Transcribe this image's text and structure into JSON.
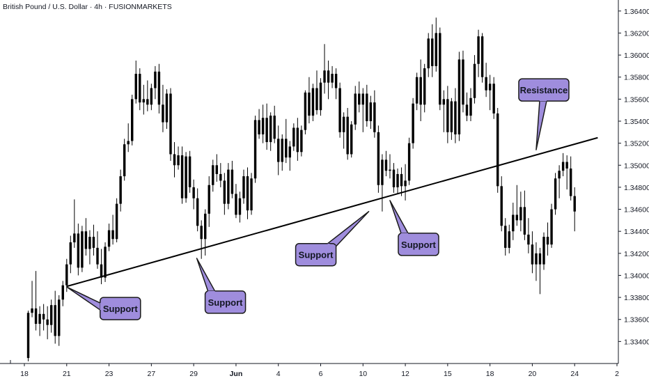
{
  "header": {
    "title": "British Pound / U.S. Dollar · 4h · FUSIONMARKETS"
  },
  "colors": {
    "candle": "#000000",
    "callout_fill": "#9f8ddd",
    "callout_stroke": "#1a1a1a",
    "background": "#ffffff",
    "axis": "#131722"
  },
  "chart_data": {
    "type": "candlestick",
    "title": "British Pound / U.S. Dollar · 4h · FUSIONMARKETS",
    "ylim": [
      1.332,
      1.365
    ],
    "y_ticks": [
      "1.33400",
      "1.33600",
      "1.33800",
      "1.34000",
      "1.34200",
      "1.34400",
      "1.34600",
      "1.34800",
      "1.35000",
      "1.35200",
      "1.35400",
      "1.35600",
      "1.35800",
      "1.36000",
      "1.36200",
      "1.36400"
    ],
    "x_ticks": [
      {
        "label": "18",
        "bar": -1
      },
      {
        "label": "21",
        "bar": 10
      },
      {
        "label": "23",
        "bar": 21
      },
      {
        "label": "27",
        "bar": 32
      },
      {
        "label": "29",
        "bar": 43
      },
      {
        "label": "Jun",
        "bar": 54
      },
      {
        "label": "4",
        "bar": 65
      },
      {
        "label": "6",
        "bar": 76
      },
      {
        "label": "10",
        "bar": 87
      },
      {
        "label": "12",
        "bar": 98
      },
      {
        "label": "15",
        "bar": 109
      },
      {
        "label": "18",
        "bar": 120
      },
      {
        "label": "20",
        "bar": 131
      },
      {
        "label": "24",
        "bar": 142
      },
      {
        "label": "2",
        "bar": 153
      }
    ],
    "bar_count_span": [
      -1,
      153
    ],
    "candles": [
      [
        1.3325,
        1.3368,
        1.3322,
        1.3366
      ],
      [
        1.3366,
        1.3395,
        1.3362,
        1.337
      ],
      [
        1.337,
        1.3404,
        1.335,
        1.3356
      ],
      [
        1.3356,
        1.3372,
        1.3345,
        1.3365
      ],
      [
        1.3365,
        1.3374,
        1.335,
        1.336
      ],
      [
        1.336,
        1.3372,
        1.3342,
        1.3355
      ],
      [
        1.3355,
        1.3378,
        1.3348,
        1.3373
      ],
      [
        1.3373,
        1.3386,
        1.3338,
        1.3345
      ],
      [
        1.3345,
        1.3382,
        1.3336,
        1.3378
      ],
      [
        1.3378,
        1.3395,
        1.3372,
        1.3391
      ],
      [
        1.3391,
        1.3415,
        1.3385,
        1.341
      ],
      [
        1.341,
        1.3436,
        1.3402,
        1.343
      ],
      [
        1.343,
        1.3469,
        1.3425,
        1.3438
      ],
      [
        1.3438,
        1.3447,
        1.34,
        1.3407
      ],
      [
        1.3407,
        1.3445,
        1.3403,
        1.344
      ],
      [
        1.344,
        1.3452,
        1.3418,
        1.3424
      ],
      [
        1.3424,
        1.3441,
        1.341,
        1.3435
      ],
      [
        1.3435,
        1.3446,
        1.3418,
        1.3425
      ],
      [
        1.3425,
        1.344,
        1.3406,
        1.341
      ],
      [
        1.341,
        1.3424,
        1.3392,
        1.3398
      ],
      [
        1.3398,
        1.343,
        1.3394,
        1.3426
      ],
      [
        1.3426,
        1.3447,
        1.3422,
        1.3441
      ],
      [
        1.3441,
        1.3455,
        1.3428,
        1.3433
      ],
      [
        1.3433,
        1.347,
        1.343,
        1.3465
      ],
      [
        1.3465,
        1.3496,
        1.3458,
        1.349
      ],
      [
        1.349,
        1.3524,
        1.3486,
        1.3519
      ],
      [
        1.3519,
        1.3538,
        1.3512,
        1.3522
      ],
      [
        1.3522,
        1.3564,
        1.3518,
        1.356
      ],
      [
        1.356,
        1.3595,
        1.3556,
        1.3583
      ],
      [
        1.3583,
        1.3588,
        1.355,
        1.3557
      ],
      [
        1.3557,
        1.3573,
        1.3546,
        1.356
      ],
      [
        1.356,
        1.3577,
        1.3549,
        1.3555
      ],
      [
        1.3555,
        1.3574,
        1.355,
        1.357
      ],
      [
        1.357,
        1.359,
        1.356,
        1.3585
      ],
      [
        1.3585,
        1.3592,
        1.3547,
        1.3555
      ],
      [
        1.3555,
        1.3573,
        1.353,
        1.3539
      ],
      [
        1.3539,
        1.3569,
        1.3533,
        1.3565
      ],
      [
        1.3565,
        1.357,
        1.3504,
        1.351
      ],
      [
        1.351,
        1.3521,
        1.3489,
        1.35
      ],
      [
        1.35,
        1.3517,
        1.3496,
        1.3509
      ],
      [
        1.3509,
        1.3517,
        1.3465,
        1.347
      ],
      [
        1.347,
        1.3512,
        1.3466,
        1.3508
      ],
      [
        1.3508,
        1.3513,
        1.3475,
        1.348
      ],
      [
        1.348,
        1.3487,
        1.346,
        1.347
      ],
      [
        1.347,
        1.3479,
        1.344,
        1.3445
      ],
      [
        1.3445,
        1.345,
        1.3415,
        1.3433
      ],
      [
        1.3433,
        1.346,
        1.3418,
        1.3456
      ],
      [
        1.3456,
        1.349,
        1.3444,
        1.3482
      ],
      [
        1.3482,
        1.3505,
        1.3476,
        1.35
      ],
      [
        1.35,
        1.351,
        1.3485,
        1.3492
      ],
      [
        1.3492,
        1.3502,
        1.348,
        1.3486
      ],
      [
        1.3486,
        1.3493,
        1.3455,
        1.3465
      ],
      [
        1.3465,
        1.3502,
        1.346,
        1.3496
      ],
      [
        1.3496,
        1.3504,
        1.347,
        1.3474
      ],
      [
        1.3474,
        1.3483,
        1.3452,
        1.3455
      ],
      [
        1.3455,
        1.3476,
        1.3448,
        1.347
      ],
      [
        1.347,
        1.3496,
        1.3465,
        1.349
      ],
      [
        1.349,
        1.3498,
        1.3451,
        1.3459
      ],
      [
        1.3459,
        1.3493,
        1.3455,
        1.3488
      ],
      [
        1.3488,
        1.3545,
        1.3484,
        1.3541
      ],
      [
        1.3541,
        1.3551,
        1.3524,
        1.3528
      ],
      [
        1.3528,
        1.3555,
        1.352,
        1.3543
      ],
      [
        1.3543,
        1.3556,
        1.3514,
        1.3521
      ],
      [
        1.3521,
        1.3548,
        1.3513,
        1.3545
      ],
      [
        1.3545,
        1.3554,
        1.352,
        1.3524
      ],
      [
        1.3524,
        1.3536,
        1.3491,
        1.3503
      ],
      [
        1.3503,
        1.3528,
        1.3495,
        1.3524
      ],
      [
        1.3524,
        1.3542,
        1.3502,
        1.3507
      ],
      [
        1.3507,
        1.3522,
        1.3495,
        1.3517
      ],
      [
        1.3517,
        1.3538,
        1.3513,
        1.3534
      ],
      [
        1.3534,
        1.3543,
        1.3504,
        1.3512
      ],
      [
        1.3512,
        1.3536,
        1.3508,
        1.3532
      ],
      [
        1.3532,
        1.3568,
        1.3528,
        1.3566
      ],
      [
        1.3566,
        1.358,
        1.3538,
        1.3545
      ],
      [
        1.3545,
        1.3574,
        1.354,
        1.357
      ],
      [
        1.357,
        1.3586,
        1.3546,
        1.355
      ],
      [
        1.355,
        1.3579,
        1.3545,
        1.3575
      ],
      [
        1.3575,
        1.361,
        1.3565,
        1.3586
      ],
      [
        1.3586,
        1.3595,
        1.356,
        1.3575
      ],
      [
        1.3575,
        1.359,
        1.357,
        1.3583
      ],
      [
        1.3583,
        1.3588,
        1.356,
        1.357
      ],
      [
        1.357,
        1.3575,
        1.3525,
        1.353
      ],
      [
        1.353,
        1.3548,
        1.3515,
        1.3544
      ],
      [
        1.3544,
        1.3552,
        1.3505,
        1.351
      ],
      [
        1.351,
        1.354,
        1.3507,
        1.3537
      ],
      [
        1.3537,
        1.3572,
        1.3532,
        1.3565
      ],
      [
        1.3565,
        1.3576,
        1.3548,
        1.3555
      ],
      [
        1.3555,
        1.357,
        1.353,
        1.3565
      ],
      [
        1.3565,
        1.3573,
        1.3535,
        1.354
      ],
      [
        1.354,
        1.3563,
        1.3533,
        1.3557
      ],
      [
        1.3557,
        1.3568,
        1.3525,
        1.353
      ],
      [
        1.353,
        1.3536,
        1.3475,
        1.3482
      ],
      [
        1.3482,
        1.351,
        1.3458,
        1.3505
      ],
      [
        1.3505,
        1.3513,
        1.349,
        1.3495
      ],
      [
        1.3495,
        1.351,
        1.3488,
        1.3496
      ],
      [
        1.3496,
        1.3502,
        1.3475,
        1.348
      ],
      [
        1.348,
        1.3497,
        1.3474,
        1.3492
      ],
      [
        1.3492,
        1.3498,
        1.3472,
        1.3481
      ],
      [
        1.3481,
        1.3501,
        1.3468,
        1.3486
      ],
      [
        1.3486,
        1.3525,
        1.3482,
        1.352
      ],
      [
        1.352,
        1.3561,
        1.3515,
        1.3556
      ],
      [
        1.3556,
        1.3584,
        1.355,
        1.358
      ],
      [
        1.358,
        1.3596,
        1.354,
        1.3555
      ],
      [
        1.3555,
        1.3592,
        1.3548,
        1.3588
      ],
      [
        1.3588,
        1.362,
        1.358,
        1.3615
      ],
      [
        1.3615,
        1.3628,
        1.358,
        1.359
      ],
      [
        1.359,
        1.3634,
        1.3585,
        1.362
      ],
      [
        1.362,
        1.3625,
        1.355,
        1.3555
      ],
      [
        1.3555,
        1.3568,
        1.353,
        1.356
      ],
      [
        1.356,
        1.3572,
        1.352,
        1.353
      ],
      [
        1.353,
        1.3561,
        1.3523,
        1.3558
      ],
      [
        1.3558,
        1.357,
        1.352,
        1.3528
      ],
      [
        1.3528,
        1.3603,
        1.3522,
        1.3596
      ],
      [
        1.3596,
        1.3604,
        1.3548,
        1.3555
      ],
      [
        1.3555,
        1.3566,
        1.354,
        1.3545
      ],
      [
        1.3545,
        1.357,
        1.354,
        1.3561
      ],
      [
        1.3561,
        1.36,
        1.3556,
        1.3592
      ],
      [
        1.3592,
        1.3623,
        1.358,
        1.3617
      ],
      [
        1.3617,
        1.362,
        1.3575,
        1.358
      ],
      [
        1.358,
        1.3593,
        1.3562,
        1.3568
      ],
      [
        1.3568,
        1.3582,
        1.355,
        1.3574
      ],
      [
        1.3574,
        1.358,
        1.3542,
        1.3547
      ],
      [
        1.3547,
        1.3552,
        1.3475,
        1.3481
      ],
      [
        1.3481,
        1.349,
        1.344,
        1.3445
      ],
      [
        1.3445,
        1.3452,
        1.3418,
        1.3425
      ],
      [
        1.3425,
        1.3446,
        1.342,
        1.344
      ],
      [
        1.344,
        1.3466,
        1.3432,
        1.3455
      ],
      [
        1.3455,
        1.3482,
        1.3445,
        1.345
      ],
      [
        1.345,
        1.3476,
        1.344,
        1.3462
      ],
      [
        1.3462,
        1.3477,
        1.3432,
        1.3437
      ],
      [
        1.3437,
        1.3452,
        1.342,
        1.3428
      ],
      [
        1.3428,
        1.344,
        1.3402,
        1.341
      ],
      [
        1.341,
        1.343,
        1.3395,
        1.342
      ],
      [
        1.342,
        1.3425,
        1.3383,
        1.341
      ],
      [
        1.341,
        1.3439,
        1.3405,
        1.3435
      ],
      [
        1.3435,
        1.3448,
        1.3418,
        1.3428
      ],
      [
        1.3428,
        1.3465,
        1.3425,
        1.346
      ],
      [
        1.346,
        1.3493,
        1.3455,
        1.3488
      ],
      [
        1.3488,
        1.35,
        1.347,
        1.3495
      ],
      [
        1.3495,
        1.3511,
        1.349,
        1.3503
      ],
      [
        1.3503,
        1.3509,
        1.3478,
        1.3497
      ],
      [
        1.3497,
        1.3508,
        1.3468,
        1.3472
      ],
      [
        1.3472,
        1.348,
        1.344,
        1.3458
      ]
    ],
    "trendline": {
      "from": {
        "bar": 10,
        "price": 1.339
      },
      "to": {
        "bar": 148,
        "price": 1.3525
      },
      "color": "#000000"
    },
    "annotations": [
      {
        "text": "Support",
        "anchor": {
          "bar": 10,
          "price": 1.33895
        },
        "direction": "left"
      },
      {
        "text": "Support",
        "anchor": {
          "bar": 43.8,
          "price": 1.34155
        },
        "direction": "up"
      },
      {
        "text": "Support",
        "anchor": {
          "bar": 88.5,
          "price": 1.3458
        },
        "direction": "right"
      },
      {
        "text": "Support",
        "anchor": {
          "bar": 94,
          "price": 1.3468
        },
        "direction": "up"
      },
      {
        "text": "Resistance",
        "anchor": {
          "bar": 132,
          "price": 1.3514
        },
        "direction": "down"
      }
    ]
  }
}
